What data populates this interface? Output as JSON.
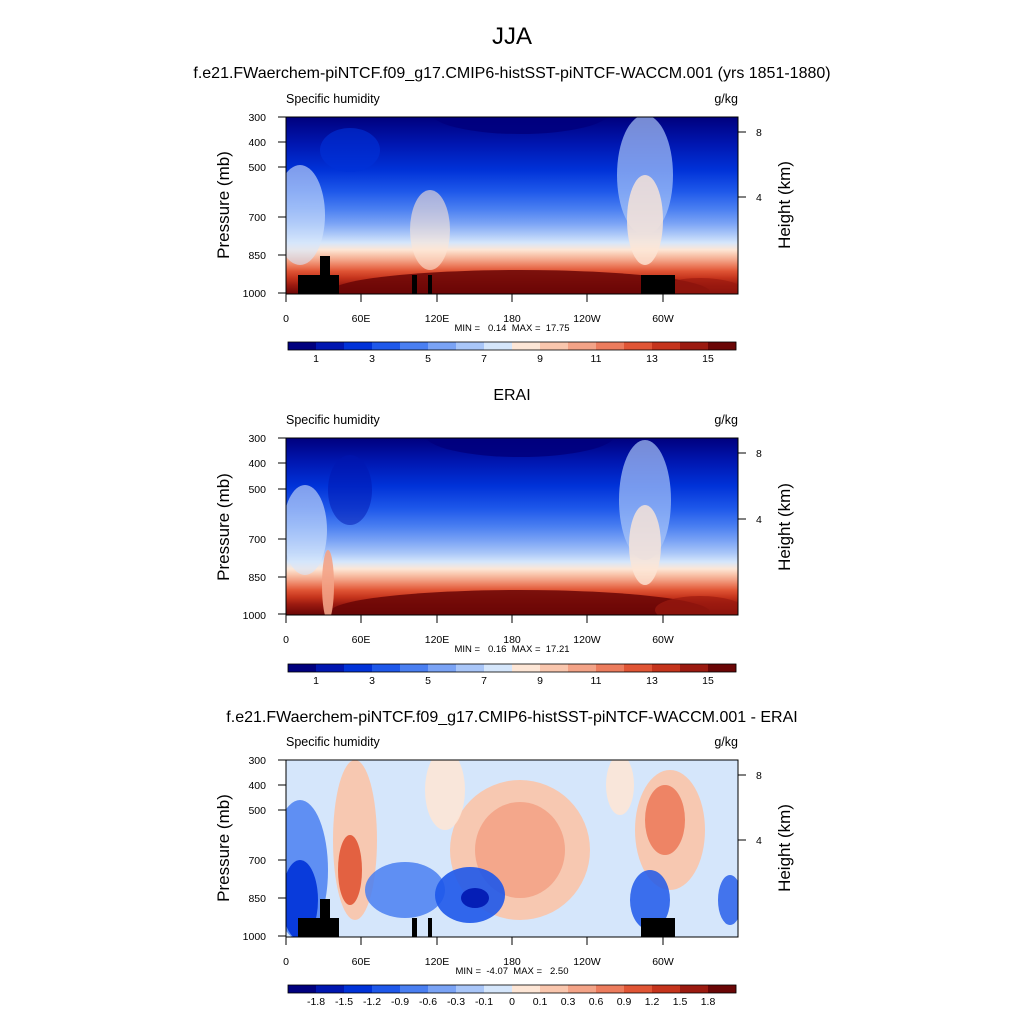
{
  "figure": {
    "title": "JJA",
    "panel_titles": [
      "f.e21.FWaerchem-piNTCF.f09_g17.CMIP6-histSST-piNTCF-WACCM.001 (yrs 1851-1880)",
      "ERAI",
      "f.e21.FWaerchem-piNTCF.f09_g17.CMIP6-histSST-piNTCF-WACCM.001 - ERAI"
    ]
  },
  "chart_data": [
    {
      "type": "heatmap",
      "title": "f.e21.FWaerchem-piNTCF.f09_g17.CMIP6-histSST-piNTCF-WACCM.001 (yrs 1851-1880)",
      "variable_label": "Specific humidity",
      "units_label": "g/kg",
      "xlabel": "",
      "ylabel": "Pressure (mb)",
      "y2label": "Height (km)",
      "xticks": [
        "0",
        "60E",
        "120E",
        "180",
        "120W",
        "60W"
      ],
      "yticks": [
        "300",
        "400",
        "500",
        "700",
        "850",
        "1000"
      ],
      "y2ticks": [
        "8",
        "4"
      ],
      "minmax": "MIN =   0.14  MAX =  17.75",
      "colorbar": {
        "colors": [
          "#00007e",
          "#0016b0",
          "#0032d8",
          "#1e58ea",
          "#4a7ff1",
          "#7aa3f5",
          "#a9c6f8",
          "#d5e6fb",
          "#fde6d6",
          "#f9c6ad",
          "#f3a387",
          "#ec7c5d",
          "#e05535",
          "#c5341c",
          "#9b1a10",
          "#6a0606"
        ],
        "labels": [
          "1",
          "3",
          "5",
          "7",
          "9",
          "11",
          "13",
          "15"
        ]
      }
    },
    {
      "type": "heatmap",
      "title": "ERAI",
      "variable_label": "Specific humidity",
      "units_label": "g/kg",
      "xlabel": "",
      "ylabel": "Pressure (mb)",
      "y2label": "Height (km)",
      "xticks": [
        "0",
        "60E",
        "120E",
        "180",
        "120W",
        "60W"
      ],
      "yticks": [
        "300",
        "400",
        "500",
        "700",
        "850",
        "1000"
      ],
      "y2ticks": [
        "8",
        "4"
      ],
      "minmax": "MIN =   0.16  MAX =  17.21",
      "colorbar": {
        "colors": [
          "#00007e",
          "#0016b0",
          "#0032d8",
          "#1e58ea",
          "#4a7ff1",
          "#7aa3f5",
          "#a9c6f8",
          "#d5e6fb",
          "#fde6d6",
          "#f9c6ad",
          "#f3a387",
          "#ec7c5d",
          "#e05535",
          "#c5341c",
          "#9b1a10",
          "#6a0606"
        ],
        "labels": [
          "1",
          "3",
          "5",
          "7",
          "9",
          "11",
          "13",
          "15"
        ]
      }
    },
    {
      "type": "heatmap",
      "title": "f.e21.FWaerchem-piNTCF.f09_g17.CMIP6-histSST-piNTCF-WACCM.001 - ERAI",
      "variable_label": "Specific humidity",
      "units_label": "g/kg",
      "xlabel": "",
      "ylabel": "Pressure (mb)",
      "y2label": "Height (km)",
      "xticks": [
        "0",
        "60E",
        "120E",
        "180",
        "120W",
        "60W"
      ],
      "yticks": [
        "300",
        "400",
        "500",
        "700",
        "850",
        "1000"
      ],
      "y2ticks": [
        "8",
        "4"
      ],
      "minmax": "MIN =  -4.07  MAX =   2.50",
      "colorbar": {
        "colors": [
          "#00007e",
          "#0016b0",
          "#0032d8",
          "#1e58ea",
          "#4a7ff1",
          "#7aa3f5",
          "#a9c6f8",
          "#d5e6fb",
          "#fde6d6",
          "#f9c6ad",
          "#f3a387",
          "#ec7c5d",
          "#e05535",
          "#c5341c",
          "#9b1a10",
          "#6a0606"
        ],
        "labels": [
          "-1.8",
          "-1.5",
          "-1.2",
          "-0.9",
          "-0.6",
          "-0.3",
          "-0.1",
          "0",
          "0.1",
          "0.3",
          "0.6",
          "0.9",
          "1.2",
          "1.5",
          "1.8"
        ]
      }
    }
  ]
}
